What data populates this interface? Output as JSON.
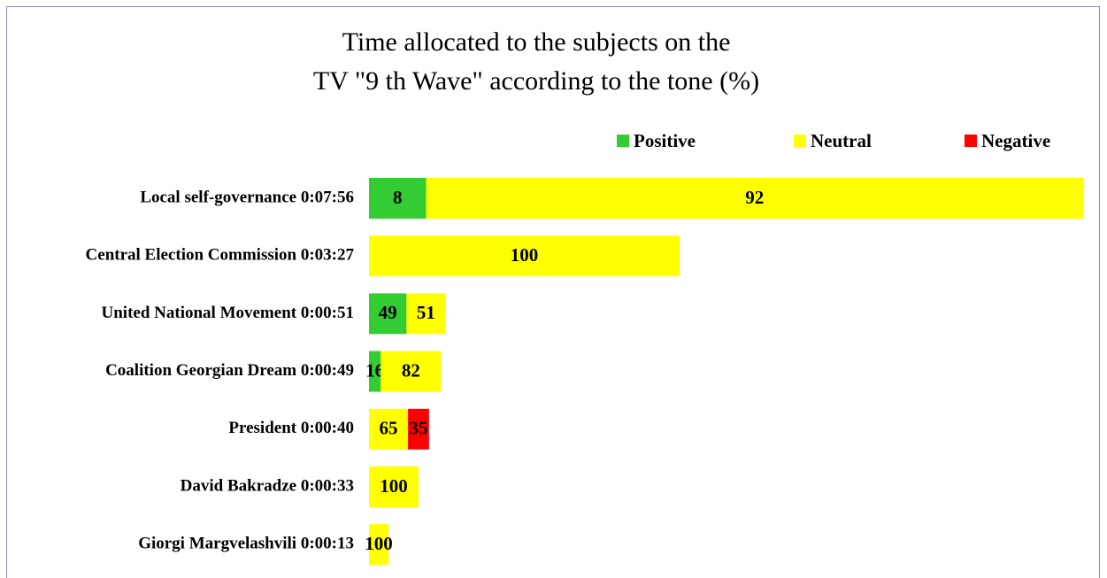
{
  "chart_data": {
    "type": "stacked-bar-horizontal",
    "title": [
      "Time allocated to the subjects on the",
      "TV \"9 th Wave\" according to the tone (%)"
    ],
    "categories": [
      "Local self-governance 0:07:56",
      "Central Election Commission 0:03:27",
      "United National Movement 0:00:51",
      "Coalition Georgian Dream 0:00:49",
      "President 0:00:40",
      "David Bakradze 0:00:33",
      "Giorgi Margvelashvili 0:00:13"
    ],
    "series": [
      {
        "name": "Positive",
        "color": "#33cc33",
        "values": [
          8,
          null,
          49,
          16,
          null,
          null,
          null
        ]
      },
      {
        "name": "Neutral",
        "color": "#ffff00",
        "values": [
          92,
          100,
          51,
          82,
          65,
          100,
          100
        ]
      },
      {
        "name": "Negative",
        "color": "#ff0000",
        "values": [
          null,
          null,
          null,
          null,
          35,
          null,
          null
        ]
      }
    ],
    "legend": "top-right"
  }
}
